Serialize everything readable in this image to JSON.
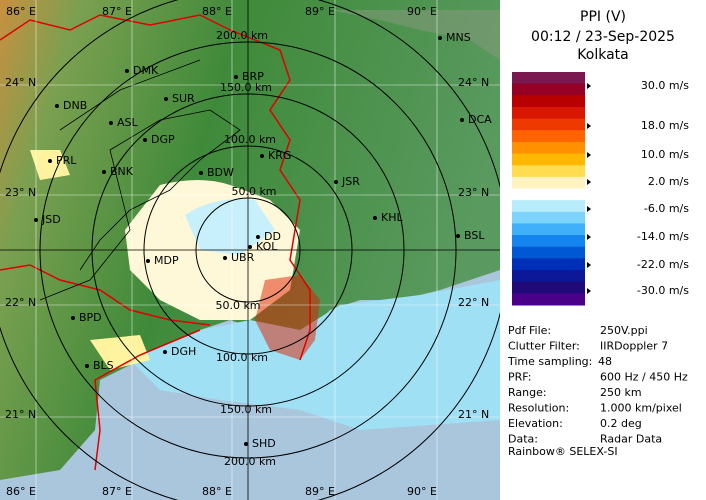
{
  "map": {
    "lon_labels": [
      "86° E",
      "87° E",
      "88° E",
      "89° E",
      "90° E"
    ],
    "lat_labels": [
      "24° N",
      "23° N",
      "22° N",
      "21° N"
    ],
    "range_labels": [
      "50.0 km",
      "100.0 km",
      "150.0 km",
      "200.0 km"
    ],
    "stations": [
      "MNS",
      "DMK",
      "BRP",
      "DNB",
      "SUR",
      "ASL",
      "DGP",
      "DCA",
      "KRG",
      "PRL",
      "BNK",
      "BDW",
      "JSR",
      "KHL",
      "JSD",
      "DD",
      "KOL",
      "BSL",
      "MDP",
      "UBR",
      "BPD",
      "DGH",
      "BLS",
      "SHD"
    ]
  },
  "panel": {
    "title": "PPI (V)",
    "time": "00:12 / 23-Sep-2025",
    "site": "Kolkata",
    "legend": {
      "colors": [
        "#7a1850",
        "#960024",
        "#b80000",
        "#d81800",
        "#ee3a00",
        "#ff6400",
        "#ff9000",
        "#ffb800",
        "#ffdc50",
        "#fff4c0",
        "#ffffff",
        "#b8ecfa",
        "#7cd4fc",
        "#40b0fa",
        "#1484ee",
        "#0058d4",
        "#0030b8",
        "#0c1898",
        "#200a78",
        "#4a0088"
      ],
      "labels": [
        "30.0 m/s",
        "18.0 m/s",
        "10.0 m/s",
        "2.0 m/s",
        "-6.0 m/s",
        "-14.0 m/s",
        "-22.0 m/s",
        "-30.0 m/s"
      ]
    },
    "info": [
      [
        "Pdf File:",
        "250V.ppi"
      ],
      [
        "Clutter Filter:",
        "IIRDoppler 7"
      ],
      [
        "Time sampling:",
        "48"
      ],
      [
        "PRF:",
        "600 Hz / 450 Hz"
      ],
      [
        "Range:",
        "250 km"
      ],
      [
        "Resolution:",
        "1.000 km/pixel"
      ],
      [
        "Elevation:",
        "0.2 deg"
      ],
      [
        "Data:",
        "Radar Data"
      ]
    ],
    "footer": "Rainbow® SELEX-SI"
  }
}
